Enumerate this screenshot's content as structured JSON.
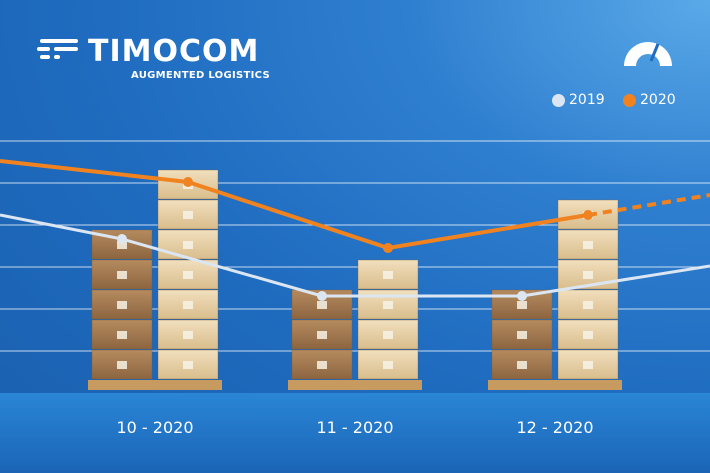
{
  "brand": {
    "name": "TIMOCOM",
    "tagline": "AUGMENTED LOGISTICS"
  },
  "colors": {
    "background": "#1f6cc0",
    "series_2019": "#dce6f2",
    "series_2020": "#f0831f",
    "grid": "#ffffff"
  },
  "icons": [
    "timocom-logo-icon",
    "gauge-icon"
  ],
  "chart_data": {
    "type": "line",
    "categories": [
      "10 - 2020",
      "11 - 2020",
      "12 - 2020"
    ],
    "series": [
      {
        "name": "2019",
        "values": [
          4.7,
          2.8,
          2.8
        ],
        "color": "#dce6f2"
      },
      {
        "name": "2020",
        "values": [
          6.6,
          4.4,
          5.5
        ],
        "color": "#f0831f"
      }
    ],
    "legend": {
      "position": "top-right",
      "entries": [
        "2019",
        "2020"
      ]
    },
    "grid": true,
    "ylim": [
      0,
      7
    ],
    "projection": "2020 series continues as a dashed line after 12 - 2020"
  }
}
